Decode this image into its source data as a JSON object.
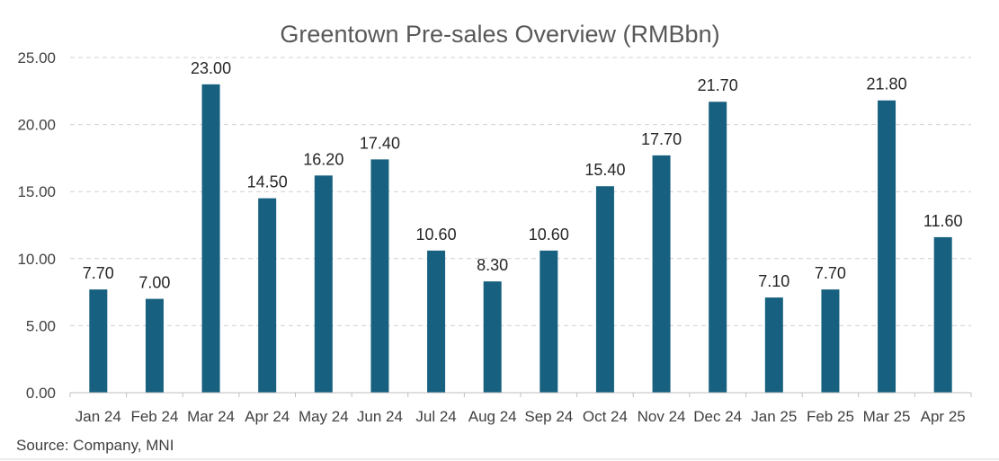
{
  "chart_data": {
    "type": "bar",
    "title": "Greentown Pre-sales Overview (RMBbn)",
    "xlabel": "",
    "ylabel": "",
    "ylim": [
      0,
      25
    ],
    "yticks": [
      "0.00",
      "5.00",
      "10.00",
      "15.00",
      "20.00",
      "25.00"
    ],
    "grid": true,
    "categories": [
      "Jan 24",
      "Feb 24",
      "Mar 24",
      "Apr 24",
      "May 24",
      "Jun 24",
      "Jul 24",
      "Aug 24",
      "Sep 24",
      "Oct 24",
      "Nov 24",
      "Dec 24",
      "Jan 25",
      "Feb 25",
      "Mar 25",
      "Apr 25"
    ],
    "values": [
      7.7,
      7.0,
      23.0,
      14.5,
      16.2,
      17.4,
      10.6,
      8.3,
      10.6,
      15.4,
      17.7,
      21.7,
      7.1,
      7.7,
      21.8,
      11.6
    ],
    "value_labels": [
      "7.70",
      "7.00",
      "23.00",
      "14.50",
      "16.20",
      "17.40",
      "10.60",
      "8.30",
      "10.60",
      "15.40",
      "17.70",
      "21.70",
      "7.10",
      "7.70",
      "21.80",
      "11.60"
    ],
    "bar_color": "#17607f",
    "source": "Source: Company, MNI"
  }
}
